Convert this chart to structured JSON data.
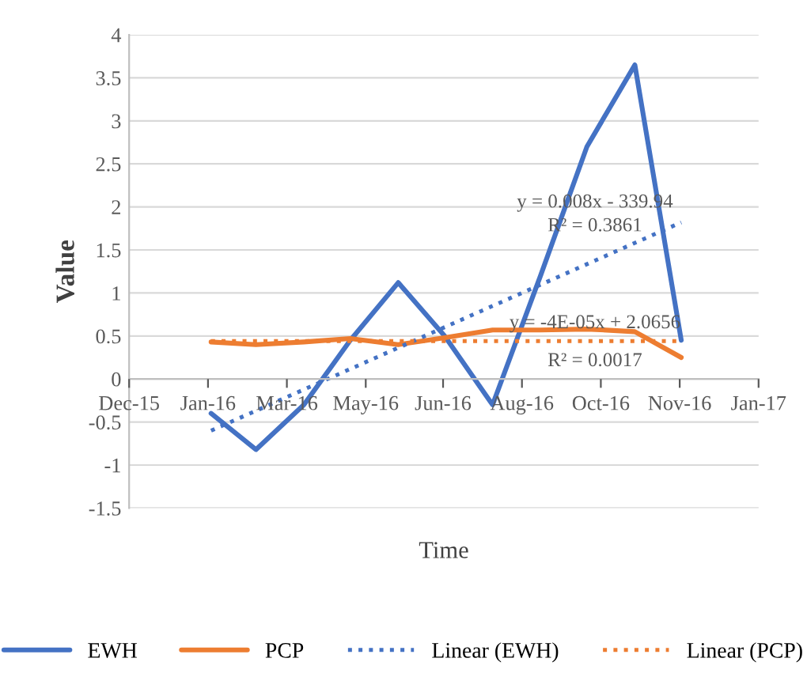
{
  "chart_data": {
    "type": "line",
    "xlabel": "Time",
    "ylabel": "Value",
    "x": [
      "2016-02-01",
      "2016-03-01",
      "2016-04-01",
      "2016-05-01",
      "2016-06-01",
      "2016-07-01",
      "2016-08-01",
      "2016-09-01",
      "2016-10-01",
      "2016-11-01",
      "2016-12-01"
    ],
    "series": [
      {
        "name": "EWH",
        "color": "#4472c4",
        "values": [
          -0.4,
          -0.82,
          -0.3,
          0.45,
          1.12,
          0.5,
          -0.3,
          1.2,
          2.7,
          3.65,
          0.45
        ],
        "line_style": "solid"
      },
      {
        "name": "PCP",
        "color": "#ed7d31",
        "values": [
          0.43,
          0.4,
          0.43,
          0.47,
          0.4,
          0.48,
          0.57,
          0.57,
          0.58,
          0.55,
          0.25
        ],
        "line_style": "solid"
      },
      {
        "name": "Linear (EWH)",
        "color": "#4472c4",
        "x": [
          "2016-02-01",
          "2016-12-01"
        ],
        "values": [
          -0.6,
          1.82
        ],
        "line_style": "dotted"
      },
      {
        "name": "Linear (PCP)",
        "color": "#ed7d31",
        "x": [
          "2016-02-01",
          "2016-12-01"
        ],
        "values": [
          0.44,
          0.44
        ],
        "line_style": "dotted"
      }
    ],
    "annotations": [
      "y = 0.008x - 339.94",
      "R² = 0.3861",
      "y = -4E-05x + 2.0656",
      "R² = 0.0017"
    ],
    "xlim": [
      "2015-12-10",
      "2017-01-20"
    ],
    "xticks": [
      {
        "value": "2015-12-10",
        "label": "Dec-15"
      },
      {
        "value": "2016-01-30",
        "label": "Jan-16"
      },
      {
        "value": "2016-03-21",
        "label": "Mar-16"
      },
      {
        "value": "2016-05-11",
        "label": "May-16"
      },
      {
        "value": "2016-06-30",
        "label": "Jun-16"
      },
      {
        "value": "2016-08-20",
        "label": "Aug-16"
      },
      {
        "value": "2016-10-10",
        "label": "Oct-16"
      },
      {
        "value": "2016-11-30",
        "label": "Nov-16"
      },
      {
        "value": "2017-01-20",
        "label": "Jan-17"
      }
    ],
    "ylim": [
      -1.5,
      4
    ],
    "yticks": [
      -1.5,
      -1,
      -0.5,
      0,
      0.5,
      1,
      1.5,
      2,
      2.5,
      3,
      3.5,
      4
    ],
    "grid": "y",
    "legend": "bottom"
  }
}
